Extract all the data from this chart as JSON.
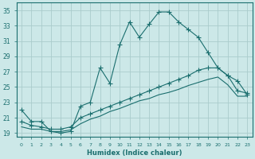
{
  "xlabel": "Humidex (Indice chaleur)",
  "background_color": "#cce8e8",
  "grid_color": "#aacccc",
  "line_color": "#1a6e6e",
  "xlim": [
    -0.5,
    23.5
  ],
  "ylim": [
    18.5,
    36.0
  ],
  "xticks": [
    0,
    1,
    2,
    3,
    4,
    5,
    6,
    7,
    8,
    9,
    10,
    11,
    12,
    13,
    14,
    15,
    16,
    17,
    18,
    19,
    20,
    21,
    22,
    23
  ],
  "yticks": [
    19,
    21,
    23,
    25,
    27,
    29,
    31,
    33,
    35
  ],
  "line1_x": [
    0,
    1,
    2,
    3,
    4,
    5,
    6,
    7,
    8,
    9,
    10,
    11,
    12,
    13,
    14,
    15,
    16,
    17,
    18,
    19,
    20,
    21,
    22,
    23
  ],
  "line1_y": [
    22.0,
    20.5,
    20.5,
    19.2,
    19.0,
    19.2,
    22.5,
    23.0,
    27.5,
    25.5,
    30.5,
    33.5,
    31.5,
    33.2,
    34.8,
    34.8,
    33.5,
    32.5,
    31.5,
    29.5,
    27.5,
    26.5,
    25.8,
    24.0
  ],
  "line2_x": [
    0,
    1,
    2,
    3,
    4,
    5,
    6,
    7,
    8,
    9,
    10,
    11,
    12,
    13,
    14,
    15,
    16,
    17,
    18,
    19,
    20,
    21,
    22,
    23
  ],
  "line2_y": [
    20.5,
    20.0,
    19.8,
    19.5,
    19.5,
    19.8,
    21.0,
    21.5,
    22.0,
    22.5,
    23.0,
    23.5,
    24.0,
    24.5,
    25.0,
    25.5,
    26.0,
    26.5,
    27.2,
    27.5,
    27.5,
    26.5,
    24.5,
    24.2
  ],
  "line3_x": [
    0,
    1,
    2,
    3,
    4,
    5,
    6,
    7,
    8,
    9,
    10,
    11,
    12,
    13,
    14,
    15,
    16,
    17,
    18,
    19,
    20,
    21,
    22,
    23
  ],
  "line3_y": [
    19.8,
    19.5,
    19.5,
    19.2,
    19.2,
    19.4,
    20.2,
    20.8,
    21.2,
    21.8,
    22.2,
    22.7,
    23.2,
    23.5,
    24.0,
    24.3,
    24.7,
    25.2,
    25.6,
    26.0,
    26.3,
    25.3,
    23.8,
    23.8
  ]
}
